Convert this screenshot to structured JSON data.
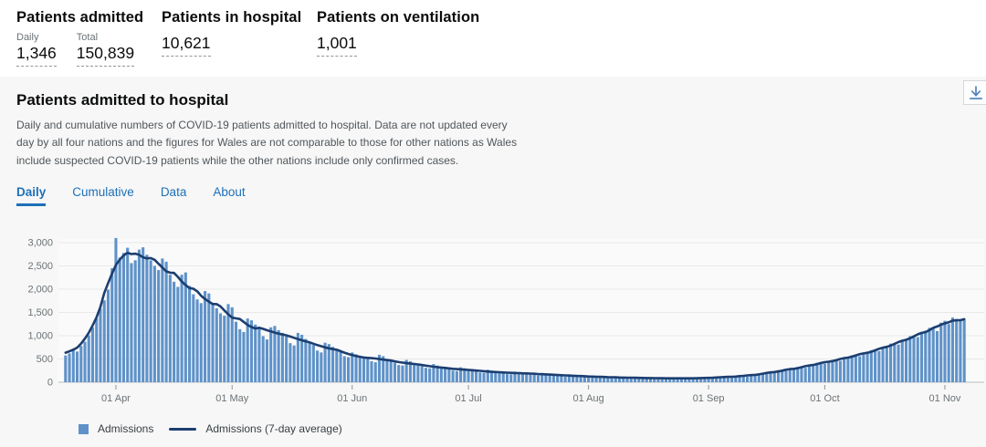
{
  "stats": {
    "admitted": {
      "title": "Patients admitted",
      "daily_label": "Daily",
      "daily_value": "1,346",
      "total_label": "Total",
      "total_value": "150,839"
    },
    "in_hospital": {
      "title": "Patients in hospital",
      "value": "10,621"
    },
    "ventilation": {
      "title": "Patients on ventilation",
      "value": "1,001"
    }
  },
  "card": {
    "title": "Patients admitted to hospital",
    "description": "Daily and cumulative numbers of COVID-19 patients admitted to hospital. Data are not updated every day by all four nations and the figures for Wales are not comparable to those for other nations as Wales include suspected COVID-19 patients while the other nations include only confirmed cases.",
    "download_icon": "download-icon",
    "tabs": [
      {
        "label": "Daily",
        "active": true
      },
      {
        "label": "Cumulative",
        "active": false
      },
      {
        "label": "Data",
        "active": false
      },
      {
        "label": "About",
        "active": false
      }
    ]
  },
  "legend": {
    "bar_label": "Admissions",
    "line_label": "Admissions (7-day average)"
  },
  "colors": {
    "tab_blue": "#1d70b8",
    "bar": "#5e92c9",
    "line": "#1c3e70",
    "grid": "#e8e8e8",
    "axis": "#b9bcbe",
    "tick_text": "#6b7276",
    "card_bg": "#f7f7f7",
    "plot_bg": "#fafafa",
    "download_arrow": "#4e81bd"
  },
  "chart_data": {
    "type": "bar",
    "x_unit": "day",
    "ylim": [
      0,
      3200
    ],
    "grid": true,
    "legend_position": "bottom-left",
    "y_ticks": [
      {
        "value": 0,
        "label": "0"
      },
      {
        "value": 500,
        "label": "500"
      },
      {
        "value": 1000,
        "label": "1,000"
      },
      {
        "value": 1500,
        "label": "1,500"
      },
      {
        "value": 2000,
        "label": "2,000"
      },
      {
        "value": 2500,
        "label": "2,500"
      },
      {
        "value": 3000,
        "label": "3,000"
      }
    ],
    "x_ticks": [
      {
        "label": "01 Apr",
        "day_index": 13
      },
      {
        "label": "01 May",
        "day_index": 43
      },
      {
        "label": "01 Jun",
        "day_index": 74
      },
      {
        "label": "01 Jul",
        "day_index": 104
      },
      {
        "label": "01 Aug",
        "day_index": 135
      },
      {
        "label": "01 Sep",
        "day_index": 166
      },
      {
        "label": "01 Oct",
        "day_index": 196
      },
      {
        "label": "01 Nov",
        "day_index": 227
      }
    ],
    "series": [
      {
        "name": "Admissions",
        "type": "bar",
        "color": "#5e92c9",
        "values": [
          575,
          620,
          690,
          660,
          780,
          870,
          1010,
          1180,
          1370,
          1580,
          1760,
          1990,
          2450,
          3099,
          2680,
          2780,
          2890,
          2560,
          2620,
          2850,
          2900,
          2740,
          2620,
          2500,
          2410,
          2660,
          2590,
          2310,
          2160,
          2050,
          2310,
          2360,
          2070,
          1890,
          1780,
          1700,
          1960,
          1910,
          1700,
          1590,
          1480,
          1430,
          1680,
          1610,
          1300,
          1140,
          1080,
          1370,
          1330,
          1240,
          1160,
          990,
          920,
          1180,
          1210,
          1120,
          1060,
          980,
          840,
          790,
          1060,
          1020,
          930,
          870,
          800,
          680,
          640,
          850,
          820,
          760,
          700,
          650,
          560,
          540,
          640,
          600,
          560,
          540,
          500,
          450,
          430,
          590,
          560,
          500,
          460,
          420,
          370,
          360,
          480,
          450,
          410,
          380,
          350,
          310,
          300,
          390,
          360,
          330,
          300,
          280,
          250,
          240,
          320,
          300,
          280,
          260,
          240,
          210,
          200,
          270,
          250,
          230,
          210,
          200,
          180,
          170,
          230,
          220,
          200,
          190,
          180,
          160,
          150,
          200,
          190,
          170,
          160,
          150,
          130,
          120,
          170,
          160,
          140,
          130,
          120,
          110,
          100,
          140,
          130,
          120,
          110,
          100,
          90,
          85,
          120,
          110,
          100,
          95,
          90,
          80,
          75,
          105,
          100,
          90,
          85,
          80,
          70,
          70,
          100,
          95,
          90,
          85,
          80,
          75,
          70,
          100,
          110,
          105,
          100,
          95,
          90,
          120,
          130,
          140,
          130,
          125,
          120,
          150,
          170,
          190,
          180,
          175,
          200,
          230,
          260,
          250,
          240,
          270,
          300,
          330,
          320,
          310,
          350,
          390,
          420,
          410,
          400,
          450,
          480,
          470,
          460,
          510,
          550,
          580,
          570,
          560,
          610,
          650,
          690,
          680,
          670,
          730,
          780,
          830,
          820,
          810,
          880,
          930,
          990,
          980,
          970,
          1050,
          1110,
          1170,
          1150,
          1100,
          1280,
          1320,
          1250,
          1390,
          1360,
          1320,
          1346
        ]
      },
      {
        "name": "Admissions (7-day average)",
        "type": "line",
        "color": "#1c3e70",
        "derivation": "7-day centered moving average of Admissions"
      }
    ]
  }
}
